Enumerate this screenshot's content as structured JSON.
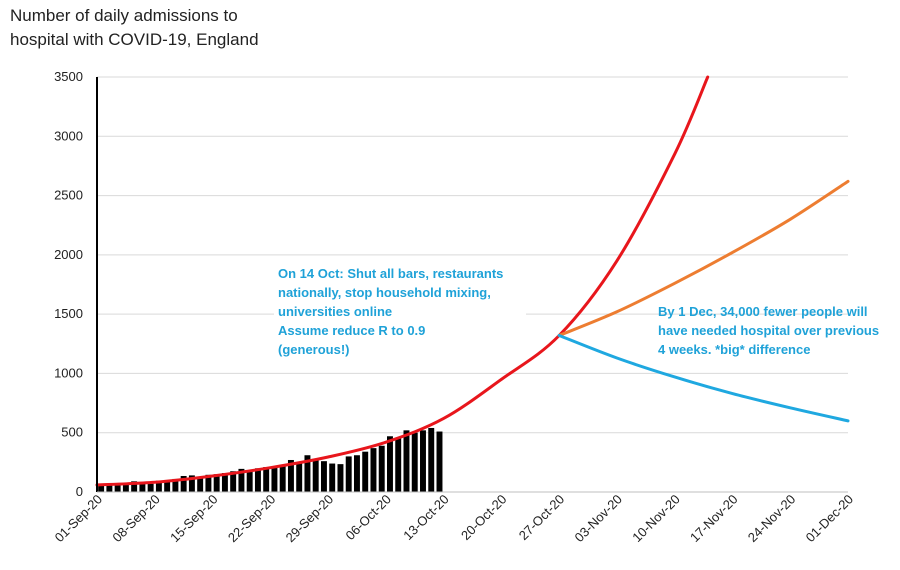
{
  "chart_data": {
    "type": "bar+line",
    "title_lines": [
      "Number of daily admissions to",
      "hospital with COVID-19, England"
    ],
    "xlabel": "",
    "ylabel": "",
    "ylim": [
      0,
      3500
    ],
    "yticks": [
      0,
      500,
      1000,
      1500,
      2000,
      2500,
      3000,
      3500
    ],
    "x_start": "01-Sep-20",
    "x_end": "01-Dec-20",
    "xtick_labels": [
      "01-Sep-20",
      "08-Sep-20",
      "15-Sep-20",
      "22-Sep-20",
      "29-Sep-20",
      "06-Oct-20",
      "13-Oct-20",
      "20-Oct-20",
      "27-Oct-20",
      "03-Nov-20",
      "10-Nov-20",
      "17-Nov-20",
      "24-Nov-20",
      "01-Dec-20"
    ],
    "grid": "horizontal",
    "bars": {
      "color": "#000000",
      "dates": [
        "01-Sep-20",
        "02-Sep-20",
        "03-Sep-20",
        "04-Sep-20",
        "05-Sep-20",
        "06-Sep-20",
        "07-Sep-20",
        "08-Sep-20",
        "09-Sep-20",
        "10-Sep-20",
        "11-Sep-20",
        "12-Sep-20",
        "13-Sep-20",
        "14-Sep-20",
        "15-Sep-20",
        "16-Sep-20",
        "17-Sep-20",
        "18-Sep-20",
        "19-Sep-20",
        "20-Sep-20",
        "21-Sep-20",
        "22-Sep-20",
        "23-Sep-20",
        "24-Sep-20",
        "25-Sep-20",
        "26-Sep-20",
        "27-Sep-20",
        "28-Sep-20",
        "29-Sep-20",
        "30-Sep-20",
        "01-Oct-20",
        "02-Oct-20",
        "03-Oct-20",
        "04-Oct-20",
        "05-Oct-20",
        "06-Oct-20",
        "07-Oct-20",
        "08-Oct-20",
        "09-Oct-20",
        "10-Oct-20",
        "11-Oct-20",
        "12-Oct-20"
      ],
      "values": [
        62,
        58,
        55,
        60,
        90,
        78,
        70,
        95,
        85,
        110,
        135,
        140,
        125,
        145,
        150,
        160,
        175,
        195,
        180,
        200,
        210,
        205,
        230,
        270,
        250,
        310,
        280,
        260,
        240,
        235,
        300,
        310,
        340,
        370,
        390,
        470,
        460,
        520,
        500,
        520,
        540,
        510
      ]
    },
    "series": [
      {
        "color": "#e8161c",
        "dates": [
          "01-Sep-20",
          "08-Sep-20",
          "15-Sep-20",
          "22-Sep-20",
          "29-Sep-20",
          "06-Oct-20",
          "13-Oct-20",
          "20-Oct-20",
          "27-Oct-20",
          "03-Nov-20",
          "10-Nov-20",
          "14-Nov-20"
        ],
        "values": [
          60,
          82,
          135,
          205,
          295,
          420,
          620,
          950,
          1320,
          1950,
          2850,
          3500
        ]
      },
      {
        "color": "#ed7d31",
        "dates": [
          "27-Oct-20",
          "03-Nov-20",
          "10-Nov-20",
          "17-Nov-20",
          "24-Nov-20",
          "01-Dec-20"
        ],
        "values": [
          1320,
          1520,
          1760,
          2020,
          2300,
          2620
        ]
      },
      {
        "color": "#1fa8e0",
        "dates": [
          "27-Oct-20",
          "03-Nov-20",
          "10-Nov-20",
          "17-Nov-20",
          "24-Nov-20",
          "01-Dec-20"
        ],
        "values": [
          1320,
          1130,
          970,
          830,
          710,
          600
        ]
      }
    ],
    "annotations": [
      {
        "lines": [
          "On 14 Oct: Shut all bars, restaurants",
          "nationally, stop household mixing,",
          "universities online",
          "Assume reduce R to 0.9",
          "(generous!)"
        ],
        "color": "#1fa2d8"
      },
      {
        "lines": [
          "By 1 Dec, 34,000 fewer people will",
          "have needed hospital over previous",
          "4 weeks. *big* difference"
        ],
        "color": "#1fa2d8"
      }
    ]
  }
}
